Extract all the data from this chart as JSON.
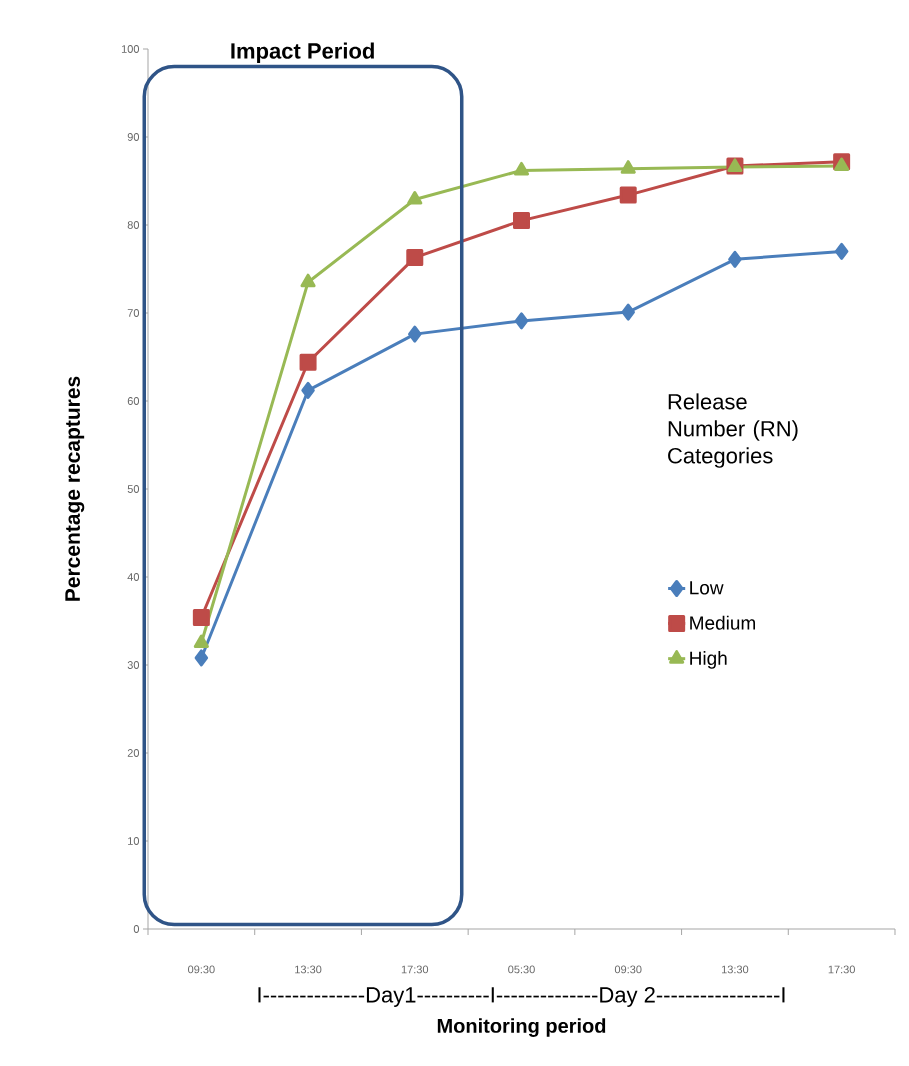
{
  "chart_data": {
    "type": "line",
    "ylabel": "Percentage recaptures",
    "xlabel": "Monitoring period",
    "legend_title": "Release Number (RN) Categories",
    "categories": [
      "09:30",
      "13:30",
      "17:30",
      "05:30",
      "09:30",
      "13:30",
      "17:30"
    ],
    "series": [
      {
        "name": "Low",
        "color": "#4a7ebb",
        "marker": "diamond",
        "values": [
          30.8,
          61.2,
          67.6,
          69.1,
          70.1,
          76.1,
          77.0
        ]
      },
      {
        "name": "Medium",
        "color": "#be4b48",
        "marker": "square",
        "values": [
          35.4,
          64.4,
          76.3,
          80.5,
          83.4,
          86.7,
          87.2
        ]
      },
      {
        "name": "High",
        "color": "#98b954",
        "marker": "triangle",
        "values": [
          32.5,
          73.5,
          82.9,
          86.2,
          86.4,
          86.6,
          86.7
        ]
      }
    ],
    "ylim": [
      0,
      100
    ],
    "yticks": [
      0,
      10,
      20,
      30,
      40,
      50,
      60,
      70,
      80,
      90,
      100
    ],
    "annotations": [
      "Impact Period",
      "I--------------Day1----------I--------------Day 2-----------------I"
    ],
    "legend": "right",
    "grid": false,
    "line_style": "solid"
  }
}
